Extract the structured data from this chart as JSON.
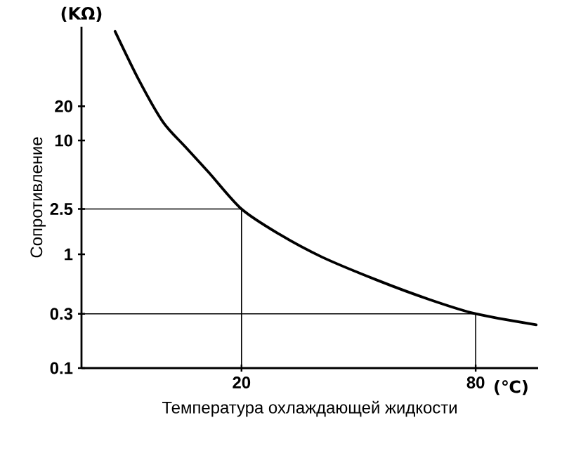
{
  "chart_data": {
    "type": "line",
    "xlabel": "Температура охлаждающей жидкости",
    "ylabel": "Сопротивление",
    "annotations": [
      "(KΩ)",
      "(℃)"
    ],
    "log": "y",
    "xlim": [
      -21,
      96
    ],
    "ylim": [
      0.1,
      100
    ],
    "xticks": [
      20,
      80
    ],
    "yticks": [
      0.1,
      0.3,
      {
        "value": 1,
        "label": "1"
      },
      2.5,
      10,
      20
    ],
    "grid": false,
    "marker": "none",
    "line_style": "solid",
    "series": [
      {
        "color": "#000000",
        "x": [
          -12.4,
          -6.3,
          -0.1,
          5.6,
          11.7,
          20,
          29.7,
          40.5,
          54.9,
          68.2,
          80,
          95.5
        ],
        "values": [
          91,
          34,
          14.5,
          8.8,
          5.2,
          2.5,
          1.5,
          0.95,
          0.59,
          0.4,
          0.3,
          0.24
        ]
      },
      {
        "color": "#000000",
        "x": [
          -21,
          20,
          20
        ],
        "values": [
          2.5,
          2.5,
          0.1
        ]
      },
      {
        "color": "#000000",
        "x": [
          -21,
          80,
          80
        ],
        "values": [
          0.3,
          0.3,
          0.1
        ]
      }
    ]
  }
}
